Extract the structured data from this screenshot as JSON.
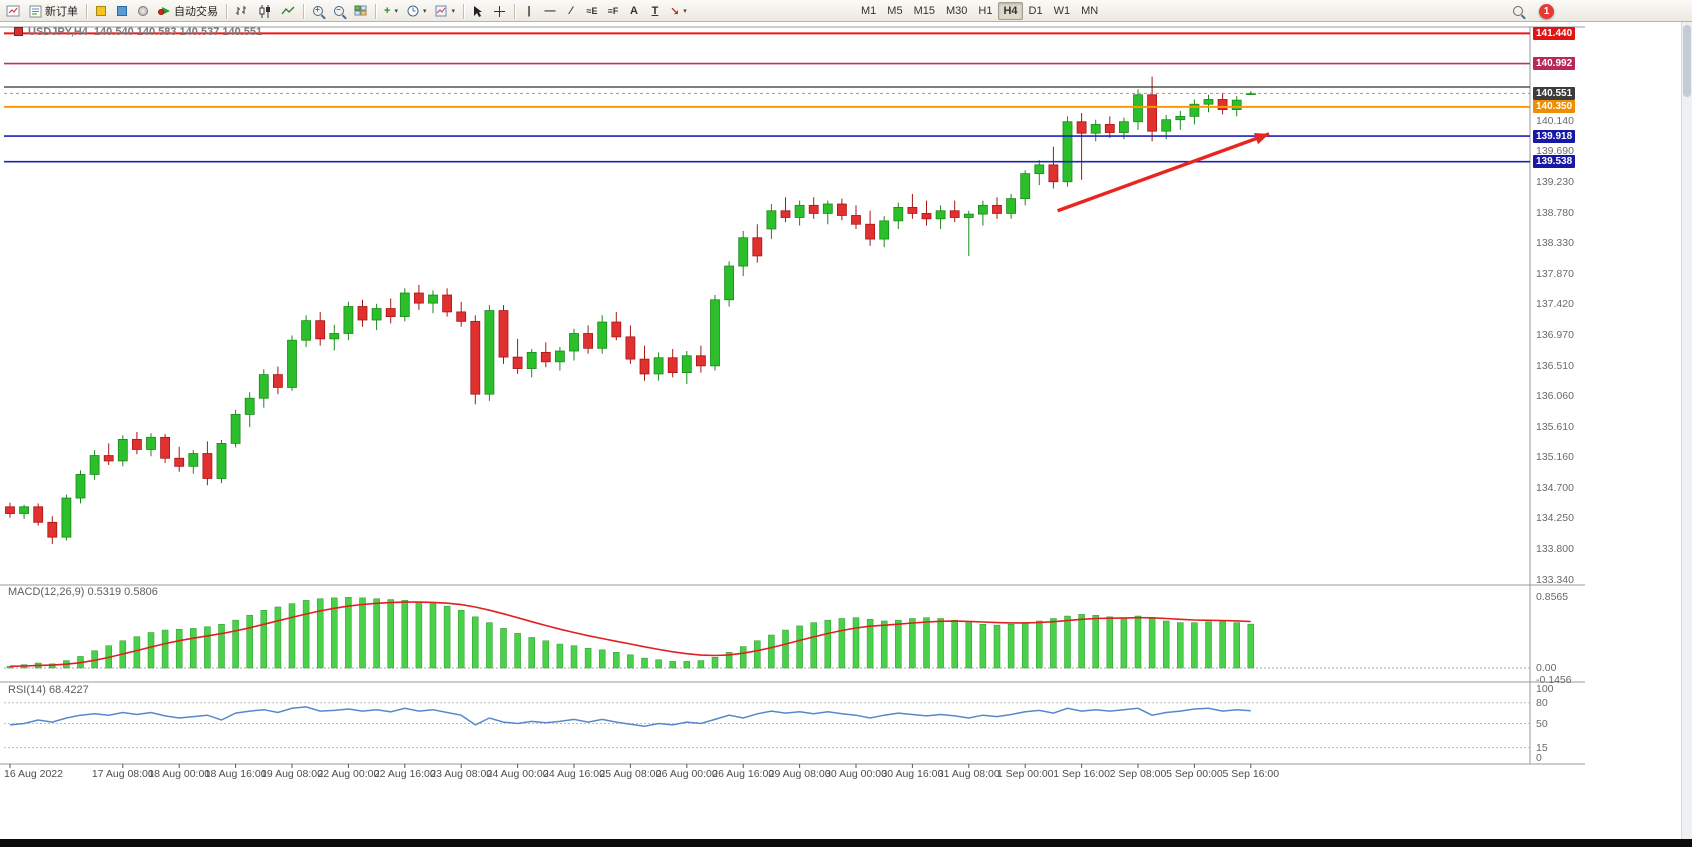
{
  "toolbar": {
    "new_order_label": "新订单",
    "auto_trading_label": "自动交易",
    "timeframes": [
      "M1",
      "M5",
      "M15",
      "M30",
      "H1",
      "H4",
      "D1",
      "W1",
      "MN"
    ],
    "active_timeframe": "H4",
    "notification_count": "1"
  },
  "icons": {
    "horizontal-line-tool": "—",
    "vertical-line-tool": "|",
    "trendline-tool": "∕",
    "elliott-wave-tool": "≈E",
    "fibonacci-tool": "≡F",
    "text-tool": "A",
    "label-tool": "T",
    "arrows-tool": "↘"
  },
  "chart": {
    "symbol_title": "USDJPY,H4",
    "ohlc_text": "140.540 140.583 140.537 140.551"
  },
  "chart_data": {
    "type": "candlestick",
    "title": "USDJPY,H4 140.540 140.583 140.537 140.551",
    "ylim": [
      133.29,
      141.52
    ],
    "price_scale_labels": [
      "140.140",
      "139.690",
      "139.230",
      "138.780",
      "138.330",
      "137.870",
      "137.420",
      "136.970",
      "136.510",
      "136.060",
      "135.610",
      "135.160",
      "134.700",
      "134.250",
      "133.800",
      "133.340"
    ],
    "hlines": [
      {
        "price": 141.44,
        "color": "#f01515",
        "w": 2,
        "badge": "141.440",
        "badge_bg": "#e01515",
        "style": "solid"
      },
      {
        "price": 140.992,
        "color": "#c23060",
        "w": 1.6,
        "badge": "140.992",
        "badge_bg": "#b82858",
        "style": "solid"
      },
      {
        "price": 140.645,
        "color": "#333333",
        "w": 1.2,
        "badge": null,
        "badge_bg": null,
        "style": "solid"
      },
      {
        "price": 140.551,
        "color": "#999999",
        "w": 1,
        "badge": "140.551",
        "badge_bg": "#3c3c3c",
        "style": "dashed"
      },
      {
        "price": 140.35,
        "color": "#ff9900",
        "w": 2,
        "badge": "140.350",
        "badge_bg": "#ef8e00",
        "style": "solid"
      },
      {
        "price": 139.918,
        "color": "#2020bb",
        "w": 1.6,
        "badge": "139.918",
        "badge_bg": "#1818a8",
        "style": "solid"
      },
      {
        "price": 139.538,
        "color": "#2020bb",
        "w": 1.6,
        "badge": "139.538",
        "badge_bg": "#1818a8",
        "style": "solid"
      }
    ],
    "candles": [
      [
        134.42,
        134.48,
        134.26,
        134.32
      ],
      [
        134.32,
        134.45,
        134.24,
        134.42
      ],
      [
        134.42,
        134.47,
        134.14,
        134.19
      ],
      [
        134.19,
        134.28,
        133.87,
        133.97
      ],
      [
        133.97,
        134.6,
        133.92,
        134.55
      ],
      [
        134.55,
        134.96,
        134.47,
        134.9
      ],
      [
        134.9,
        135.26,
        134.82,
        135.18
      ],
      [
        135.18,
        135.36,
        135.04,
        135.1
      ],
      [
        135.1,
        135.48,
        135.02,
        135.42
      ],
      [
        135.42,
        135.53,
        135.2,
        135.27
      ],
      [
        135.27,
        135.51,
        135.17,
        135.45
      ],
      [
        135.45,
        135.5,
        135.07,
        135.14
      ],
      [
        135.14,
        135.31,
        134.94,
        135.02
      ],
      [
        135.02,
        135.26,
        134.91,
        135.21
      ],
      [
        135.21,
        135.39,
        134.74,
        134.84
      ],
      [
        134.84,
        135.41,
        134.77,
        135.36
      ],
      [
        135.36,
        135.86,
        135.3,
        135.79
      ],
      [
        135.79,
        136.12,
        135.6,
        136.03
      ],
      [
        136.03,
        136.46,
        135.89,
        136.38
      ],
      [
        136.38,
        136.5,
        136.09,
        136.19
      ],
      [
        136.19,
        136.96,
        136.14,
        136.89
      ],
      [
        136.89,
        137.26,
        136.79,
        137.18
      ],
      [
        137.18,
        137.31,
        136.81,
        136.91
      ],
      [
        136.91,
        137.12,
        136.74,
        136.99
      ],
      [
        136.99,
        137.46,
        136.89,
        137.39
      ],
      [
        137.39,
        137.49,
        137.09,
        137.19
      ],
      [
        137.19,
        137.43,
        137.04,
        137.36
      ],
      [
        137.36,
        137.51,
        137.14,
        137.24
      ],
      [
        137.24,
        137.66,
        137.17,
        137.59
      ],
      [
        137.59,
        137.71,
        137.34,
        137.44
      ],
      [
        137.44,
        137.63,
        137.29,
        137.56
      ],
      [
        137.56,
        137.66,
        137.24,
        137.31
      ],
      [
        137.31,
        137.46,
        137.09,
        137.17
      ],
      [
        137.17,
        137.26,
        135.94,
        136.09
      ],
      [
        136.09,
        137.41,
        135.99,
        137.33
      ],
      [
        137.33,
        137.41,
        136.54,
        136.64
      ],
      [
        136.64,
        136.91,
        136.39,
        136.47
      ],
      [
        136.47,
        136.76,
        136.34,
        136.71
      ],
      [
        136.71,
        136.86,
        136.49,
        136.57
      ],
      [
        136.57,
        136.79,
        136.44,
        136.73
      ],
      [
        136.73,
        137.06,
        136.59,
        136.99
      ],
      [
        136.99,
        137.11,
        136.69,
        136.77
      ],
      [
        136.77,
        137.26,
        136.69,
        137.16
      ],
      [
        137.16,
        137.31,
        136.89,
        136.94
      ],
      [
        136.94,
        137.11,
        136.54,
        136.61
      ],
      [
        136.61,
        136.81,
        136.29,
        136.39
      ],
      [
        136.39,
        136.71,
        136.29,
        136.63
      ],
      [
        136.63,
        136.76,
        136.34,
        136.41
      ],
      [
        136.41,
        136.73,
        136.24,
        136.66
      ],
      [
        136.66,
        136.81,
        136.41,
        136.51
      ],
      [
        136.51,
        137.56,
        136.44,
        137.49
      ],
      [
        137.49,
        138.06,
        137.39,
        137.99
      ],
      [
        137.99,
        138.51,
        137.84,
        138.41
      ],
      [
        138.41,
        138.61,
        138.04,
        138.14
      ],
      [
        138.54,
        138.91,
        138.39,
        138.81
      ],
      [
        138.81,
        139.01,
        138.64,
        138.71
      ],
      [
        138.71,
        138.96,
        138.59,
        138.89
      ],
      [
        138.89,
        139.01,
        138.69,
        138.77
      ],
      [
        138.77,
        138.96,
        138.61,
        138.91
      ],
      [
        138.91,
        138.99,
        138.67,
        138.74
      ],
      [
        138.74,
        138.89,
        138.54,
        138.61
      ],
      [
        138.61,
        138.81,
        138.29,
        138.39
      ],
      [
        138.39,
        138.73,
        138.27,
        138.66
      ],
      [
        138.66,
        138.93,
        138.54,
        138.86
      ],
      [
        138.86,
        139.06,
        138.69,
        138.77
      ],
      [
        138.77,
        138.96,
        138.59,
        138.69
      ],
      [
        138.69,
        138.89,
        138.54,
        138.81
      ],
      [
        138.81,
        138.96,
        138.64,
        138.71
      ],
      [
        138.71,
        138.81,
        138.14,
        138.76
      ],
      [
        138.76,
        138.96,
        138.59,
        138.89
      ],
      [
        138.89,
        139.01,
        138.69,
        138.77
      ],
      [
        138.77,
        139.06,
        138.69,
        138.99
      ],
      [
        138.99,
        139.41,
        138.89,
        139.36
      ],
      [
        139.36,
        139.56,
        139.19,
        139.49
      ],
      [
        139.49,
        139.76,
        139.14,
        139.24
      ],
      [
        139.24,
        140.21,
        139.17,
        140.13
      ],
      [
        140.13,
        140.26,
        139.27,
        139.96
      ],
      [
        139.96,
        140.16,
        139.84,
        140.09
      ],
      [
        140.09,
        140.21,
        139.89,
        139.97
      ],
      [
        139.97,
        140.19,
        139.87,
        140.13
      ],
      [
        140.13,
        140.61,
        140.01,
        140.53
      ],
      [
        140.53,
        140.8,
        139.84,
        139.99
      ],
      [
        139.99,
        140.23,
        139.87,
        140.16
      ],
      [
        140.16,
        140.29,
        140.01,
        140.21
      ],
      [
        140.21,
        140.46,
        140.09,
        140.39
      ],
      [
        140.39,
        140.53,
        140.27,
        140.46
      ],
      [
        140.46,
        140.56,
        140.24,
        140.31
      ],
      [
        140.31,
        140.51,
        140.21,
        140.45
      ],
      [
        140.54,
        140.583,
        140.537,
        140.551
      ]
    ],
    "time_labels": [
      "16 Aug 2022",
      "17 Aug 08:00",
      "18 Aug 00:00",
      "18 Aug 16:00",
      "19 Aug 08:00",
      "22 Aug 00:00",
      "22 Aug 16:00",
      "23 Aug 08:00",
      "24 Aug 00:00",
      "24 Aug 16:00",
      "25 Aug 08:00",
      "26 Aug 00:00",
      "26 Aug 16:00",
      "29 Aug 08:00",
      "30 Aug 00:00",
      "30 Aug 16:00",
      "31 Aug 08:00",
      "1 Sep 00:00",
      "1 Sep 16:00",
      "2 Sep 08:00",
      "5 Sep 00:00",
      "5 Sep 16:00"
    ],
    "label_indices": [
      0,
      8,
      12,
      16,
      20,
      24,
      28,
      32,
      36,
      40,
      44,
      48,
      52,
      56,
      60,
      64,
      68,
      72,
      76,
      80,
      84,
      88
    ],
    "macd": {
      "label": "MACD(12,26,9) 0.5319 0.5806",
      "ylim": [
        -0.1456,
        0.97
      ],
      "scale_labels": [
        {
          "text": "0.8565",
          "v": 0.8565
        },
        {
          "text": "0.00",
          "v": 0
        },
        {
          "text": "-0.1456",
          "v": -0.1456
        }
      ],
      "values": [
        0.02,
        0.04,
        0.06,
        0.05,
        0.09,
        0.14,
        0.21,
        0.27,
        0.33,
        0.38,
        0.43,
        0.46,
        0.47,
        0.48,
        0.5,
        0.53,
        0.58,
        0.64,
        0.7,
        0.74,
        0.78,
        0.82,
        0.84,
        0.85,
        0.8565,
        0.85,
        0.84,
        0.83,
        0.82,
        0.8,
        0.78,
        0.75,
        0.7,
        0.62,
        0.55,
        0.48,
        0.42,
        0.37,
        0.33,
        0.29,
        0.27,
        0.24,
        0.22,
        0.19,
        0.16,
        0.12,
        0.1,
        0.08,
        0.08,
        0.09,
        0.13,
        0.19,
        0.26,
        0.33,
        0.4,
        0.46,
        0.51,
        0.55,
        0.58,
        0.6,
        0.61,
        0.59,
        0.57,
        0.58,
        0.6,
        0.61,
        0.6,
        0.58,
        0.55,
        0.53,
        0.52,
        0.53,
        0.55,
        0.57,
        0.6,
        0.63,
        0.65,
        0.64,
        0.62,
        0.61,
        0.63,
        0.6,
        0.57,
        0.55,
        0.55,
        0.56,
        0.57,
        0.55,
        0.5319
      ]
    },
    "rsi": {
      "label": "RSI(14) 68.4227",
      "levels": [
        80,
        50,
        15
      ],
      "scale_labels": [
        {
          "text": "100",
          "v": 100
        },
        {
          "text": "80",
          "v": 80
        },
        {
          "text": "50",
          "v": 50
        },
        {
          "text": "15",
          "v": 15
        },
        {
          "text": "0",
          "v": 0
        }
      ],
      "values": [
        48,
        50,
        55,
        52,
        58,
        62,
        64,
        62,
        66,
        63,
        66,
        61,
        58,
        60,
        62,
        55,
        65,
        68,
        70,
        66,
        72,
        74,
        68,
        69,
        71,
        68,
        70,
        67,
        72,
        68,
        70,
        66,
        62,
        48,
        58,
        52,
        50,
        53,
        51,
        53,
        56,
        52,
        56,
        52,
        49,
        46,
        50,
        48,
        52,
        50,
        56,
        62,
        58,
        64,
        68,
        65,
        67,
        64,
        67,
        64,
        62,
        58,
        62,
        65,
        63,
        61,
        63,
        61,
        58,
        62,
        60,
        63,
        67,
        69,
        65,
        72,
        68,
        70,
        68,
        70,
        72,
        62,
        66,
        68,
        71,
        72,
        68,
        70,
        68.4227
      ]
    },
    "arrow": {
      "from_index": 74.3,
      "from_price": 138.81,
      "to_index": 89.3,
      "to_price": 139.95,
      "color": "#e8251f"
    },
    "colors": {
      "up": "#2bbf2b",
      "up_border": "#1a8a1a",
      "down": "#e03030",
      "down_border": "#a81616",
      "macd_bar": "#4ad04a",
      "macd_signal": "#e02020",
      "rsi_line": "#5588cc",
      "bg": "#ffffff"
    }
  }
}
